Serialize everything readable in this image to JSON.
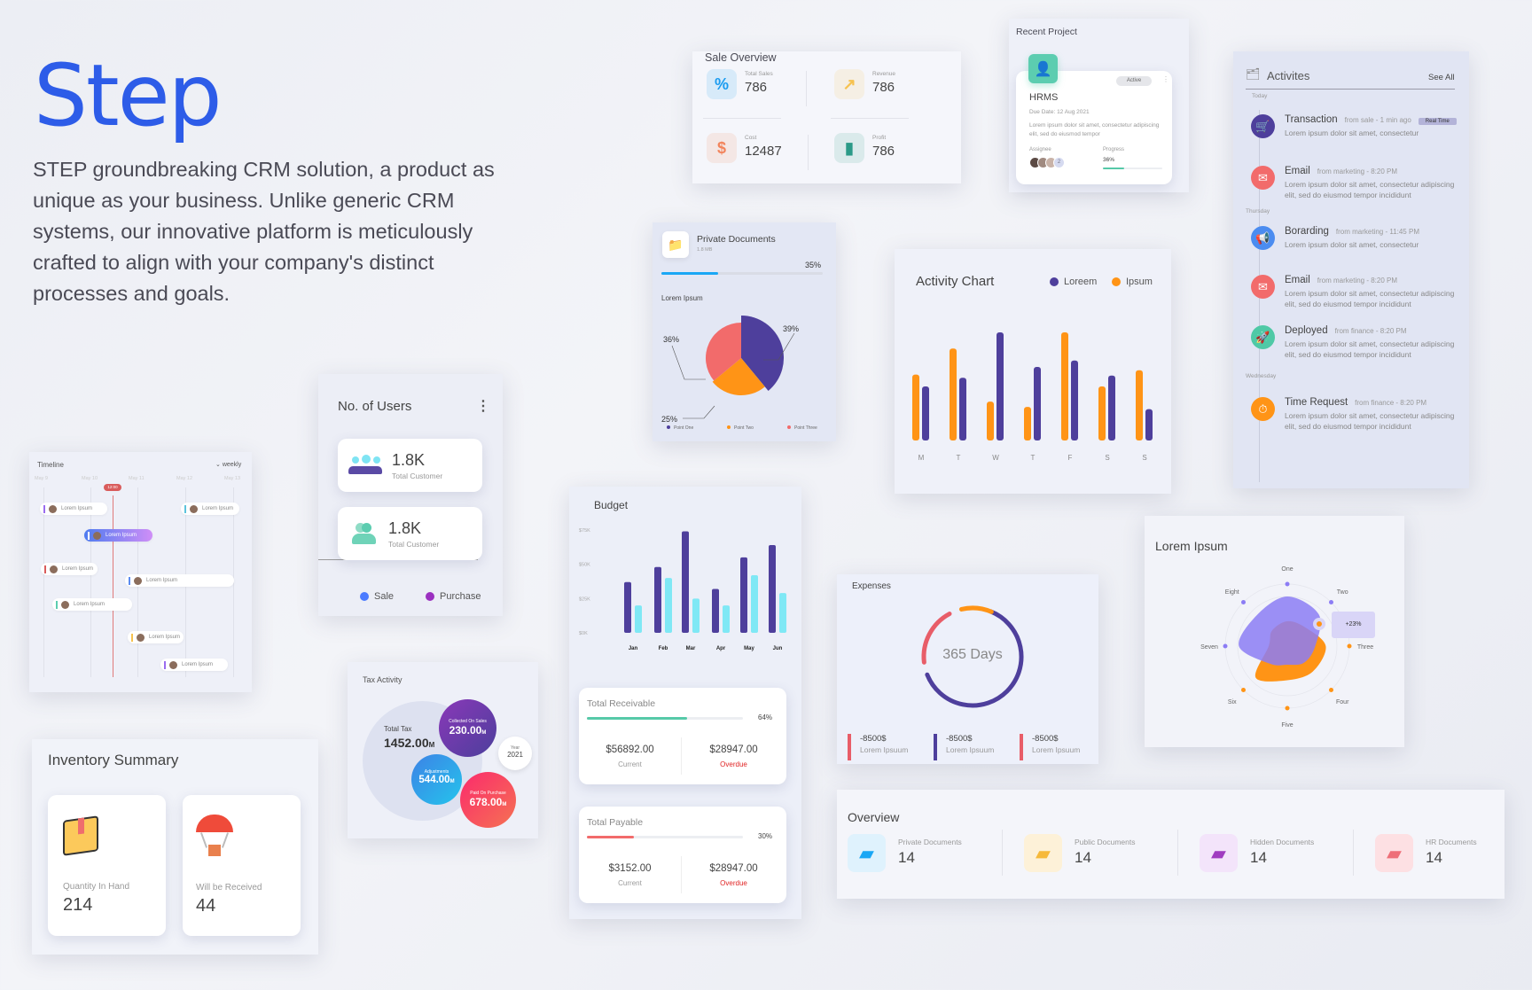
{
  "brand": {
    "logo": "Step",
    "intro": "STEP groundbreaking CRM solution, a product as unique as your business. Unlike generic CRM systems, our innovative platform is meticulously crafted to align with your company's distinct processes and goals."
  },
  "sale_overview": {
    "title": "Sale Overview",
    "items": [
      {
        "label": "Total Sales",
        "value": "786",
        "icon": "percent-tag-icon",
        "color": "#1a9bf0"
      },
      {
        "label": "Revenue",
        "value": "786",
        "icon": "growth-coins-icon",
        "color": "#f6c24f"
      },
      {
        "label": "Cost",
        "value": "12487",
        "icon": "dollar-down-icon",
        "color": "#f2845c"
      },
      {
        "label": "Profit",
        "value": "786",
        "icon": "bar-chart-icon",
        "color": "#2b9a88"
      }
    ]
  },
  "recent_project": {
    "title": "Recent Project",
    "name": "HRMS",
    "status": "Active",
    "due": "Due Date: 12 Aug 2021",
    "desc": "Lorem ipsum dolor sit amet, consectetur adipiscing elit, sed do eiusmod tempor",
    "assignee_label": "Assignee",
    "extra_assignees": "2",
    "progress_label": "Progress",
    "progress_text": "36%",
    "progress": 36
  },
  "activities": {
    "title": "Activites",
    "see_all": "See All",
    "groups": [
      {
        "day": "Today",
        "items": [
          {
            "title": "Transaction",
            "meta": "from sale - 1 min ago",
            "badge": "Real Time",
            "desc": "Lorem ipsum dolor sit amet, consectetur",
            "icon": "cart-icon",
            "color": "#4e3f9c"
          },
          {
            "title": "Email",
            "meta": "from marketing - 8:20 PM",
            "desc": "Lorem ipsum dolor sit amet, consectetur adipiscing elit, sed do eiusmod tempor incididunt",
            "icon": "mail-icon",
            "color": "#f26b6b"
          }
        ]
      },
      {
        "day": "Thursday",
        "items": [
          {
            "title": "Borarding",
            "meta": "from marketing - 11:45 PM",
            "desc": "Lorem ipsum dolor sit amet, consectetur",
            "icon": "megaphone-icon",
            "color": "#4b8cf0"
          },
          {
            "title": "Email",
            "meta": "from marketing - 8:20 PM",
            "desc": "Lorem ipsum dolor sit amet, consectetur adipiscing elit, sed do eiusmod tempor incididunt",
            "icon": "mail-icon",
            "color": "#f26b6b"
          },
          {
            "title": "Deployed",
            "meta": "from finance - 8:20 PM",
            "desc": "Lorem ipsum dolor sit amet, consectetur adipiscing elit, sed do eiusmod tempor incididunt",
            "icon": "rocket-icon",
            "color": "#4fc9a6"
          }
        ]
      },
      {
        "day": "Wednesday",
        "items": [
          {
            "title": "Time Request",
            "meta": "from finance - 8:20 PM",
            "desc": "Lorem ipsum dolor sit amet, consectetur adipiscing elit, sed do eiusmod tempor incididunt",
            "icon": "clock-icon",
            "color": "#ff9416"
          }
        ]
      }
    ]
  },
  "private_docs": {
    "title": "Private Documents",
    "size": "1.8 MB",
    "percent_text": "35%",
    "percent": 35,
    "chart_title": "Lorem Ipsum"
  },
  "users": {
    "title": "No. of Users",
    "cards": [
      {
        "value": "1.8K",
        "label": "Total Customer"
      },
      {
        "value": "1.8K",
        "label": "Total Customer"
      }
    ],
    "legend": [
      {
        "label": "Sale",
        "color": "#4b7bff"
      },
      {
        "label": "Purchase",
        "color": "#9b30c0"
      }
    ]
  },
  "timeline": {
    "title": "Timeline",
    "filter": "weekly",
    "dates": [
      "May 9",
      "May 10",
      "May 11",
      "May 12",
      "May 13"
    ],
    "now": "12:00",
    "events": [
      "Lorem Ipsum",
      "Lorem Ipsum",
      "Lorem Ipsum",
      "Lorem Ipsum",
      "Lorem Ipsum",
      "Lorem Ipsum",
      "Lorem Ipsum",
      "Lorem Ipsum"
    ]
  },
  "budget": {
    "title": "Budget"
  },
  "receivable": {
    "title": "Total Receivable",
    "percent_text": "64%",
    "percent": 64,
    "current": "$56892.00",
    "current_label": "Current",
    "overdue": "$28947.00",
    "overdue_label": "Overdue"
  },
  "payable": {
    "title": "Total Payable",
    "percent_text": "30%",
    "percent": 30,
    "current": "$3152.00",
    "current_label": "Current",
    "overdue": "$28947.00",
    "overdue_label": "Overdue"
  },
  "expenses": {
    "title": "Expenses",
    "center": "365 Days",
    "items": [
      {
        "value": "-8500$",
        "label": "Lorem Ipsuum",
        "color": "#e85d68"
      },
      {
        "value": "-8500$",
        "label": "Lorem Ipsuum",
        "color": "#4e3f9c"
      },
      {
        "value": "-8500$",
        "label": "Lorem Ipsuum",
        "color": "#e85d68"
      }
    ]
  },
  "tax": {
    "title": "Tax Activity",
    "total_label": "Total Tax",
    "total": "1452.00",
    "unit": "M",
    "collected_label": "Collected On Sales",
    "collected": "230.00",
    "adjust_label": "Adjustments",
    "adjust": "544.00",
    "paid_label": "Paid On Purchase",
    "paid": "678.00",
    "year_label": "Year",
    "year": "2021"
  },
  "inventory": {
    "title": "Inventory Summary",
    "items": [
      {
        "label": "Quantity In Hand",
        "value": "214",
        "icon": "box-icon"
      },
      {
        "label": "Will be Received",
        "value": "44",
        "icon": "parachute-icon"
      }
    ]
  },
  "overview": {
    "title": "Overview",
    "items": [
      {
        "label": "Private Documents",
        "value": "14",
        "color": "#1aa7f5",
        "bg": "#dff2fd"
      },
      {
        "label": "Public Documents",
        "value": "14",
        "color": "#f6b93b",
        "bg": "#fdf1d8"
      },
      {
        "label": "Hidden Documents",
        "value": "14",
        "color": "#a03cc0",
        "bg": "#f3e4fa"
      },
      {
        "label": "HR Documents",
        "value": "14",
        "color": "#ee6f78",
        "bg": "#fde0e3"
      }
    ]
  },
  "chart_data": [
    {
      "type": "pie",
      "title": "Lorem Ipsum",
      "categories": [
        "Point One",
        "Point Two",
        "Point Three"
      ],
      "values": [
        39,
        25,
        36
      ],
      "labels": [
        "39%",
        "25%",
        "36%"
      ],
      "colors": [
        "#4e3f9c",
        "#ff9416",
        "#f26b6b"
      ]
    },
    {
      "type": "bar",
      "title": "Activity Chart",
      "categories": [
        "M",
        "T",
        "W",
        "T",
        "F",
        "S",
        "S"
      ],
      "series": [
        {
          "name": "Loreem",
          "color": "#4e3f9c",
          "values": [
            50,
            58,
            100,
            68,
            74,
            60,
            29
          ]
        },
        {
          "name": "Ipsum",
          "color": "#ff9416",
          "values": [
            61,
            85,
            36,
            31,
            100,
            50,
            65
          ]
        }
      ],
      "ylim": [
        0,
        100
      ],
      "legend": "top-right"
    },
    {
      "type": "bar",
      "title": "Budget",
      "categories": [
        "Jan",
        "Feb",
        "Mar",
        "Apr",
        "May",
        "Jun"
      ],
      "yticks": [
        "$0K",
        "$25K",
        "$50K",
        "$75K"
      ],
      "ylim": [
        0,
        75
      ],
      "series": [
        {
          "name": "Series 1",
          "color": "#4e3f9c",
          "values": [
            37,
            48,
            74,
            32,
            55,
            64
          ]
        },
        {
          "name": "Series 2",
          "color": "#7fe8f5",
          "values": [
            20,
            40,
            25,
            20,
            42,
            29
          ]
        }
      ]
    },
    {
      "type": "pie",
      "title": "Expenses",
      "values": [
        63,
        19,
        10
      ],
      "colors": [
        "#4e3f9c",
        "#e85d68",
        "#ff9416"
      ]
    },
    {
      "type": "radar",
      "title": "Lorem Ipsum",
      "axes": [
        "One",
        "Two",
        "Three",
        "Four",
        "Five",
        "Six",
        "Seven",
        "Eight"
      ],
      "series": [
        {
          "name": "A",
          "color": "#8c7cf5",
          "values": [
            80,
            72,
            45,
            38,
            30,
            40,
            78,
            70
          ]
        },
        {
          "name": "B",
          "color": "#ff9416",
          "values": [
            40,
            42,
            62,
            58,
            55,
            72,
            30,
            35
          ]
        }
      ],
      "annotation": "+23%"
    }
  ]
}
